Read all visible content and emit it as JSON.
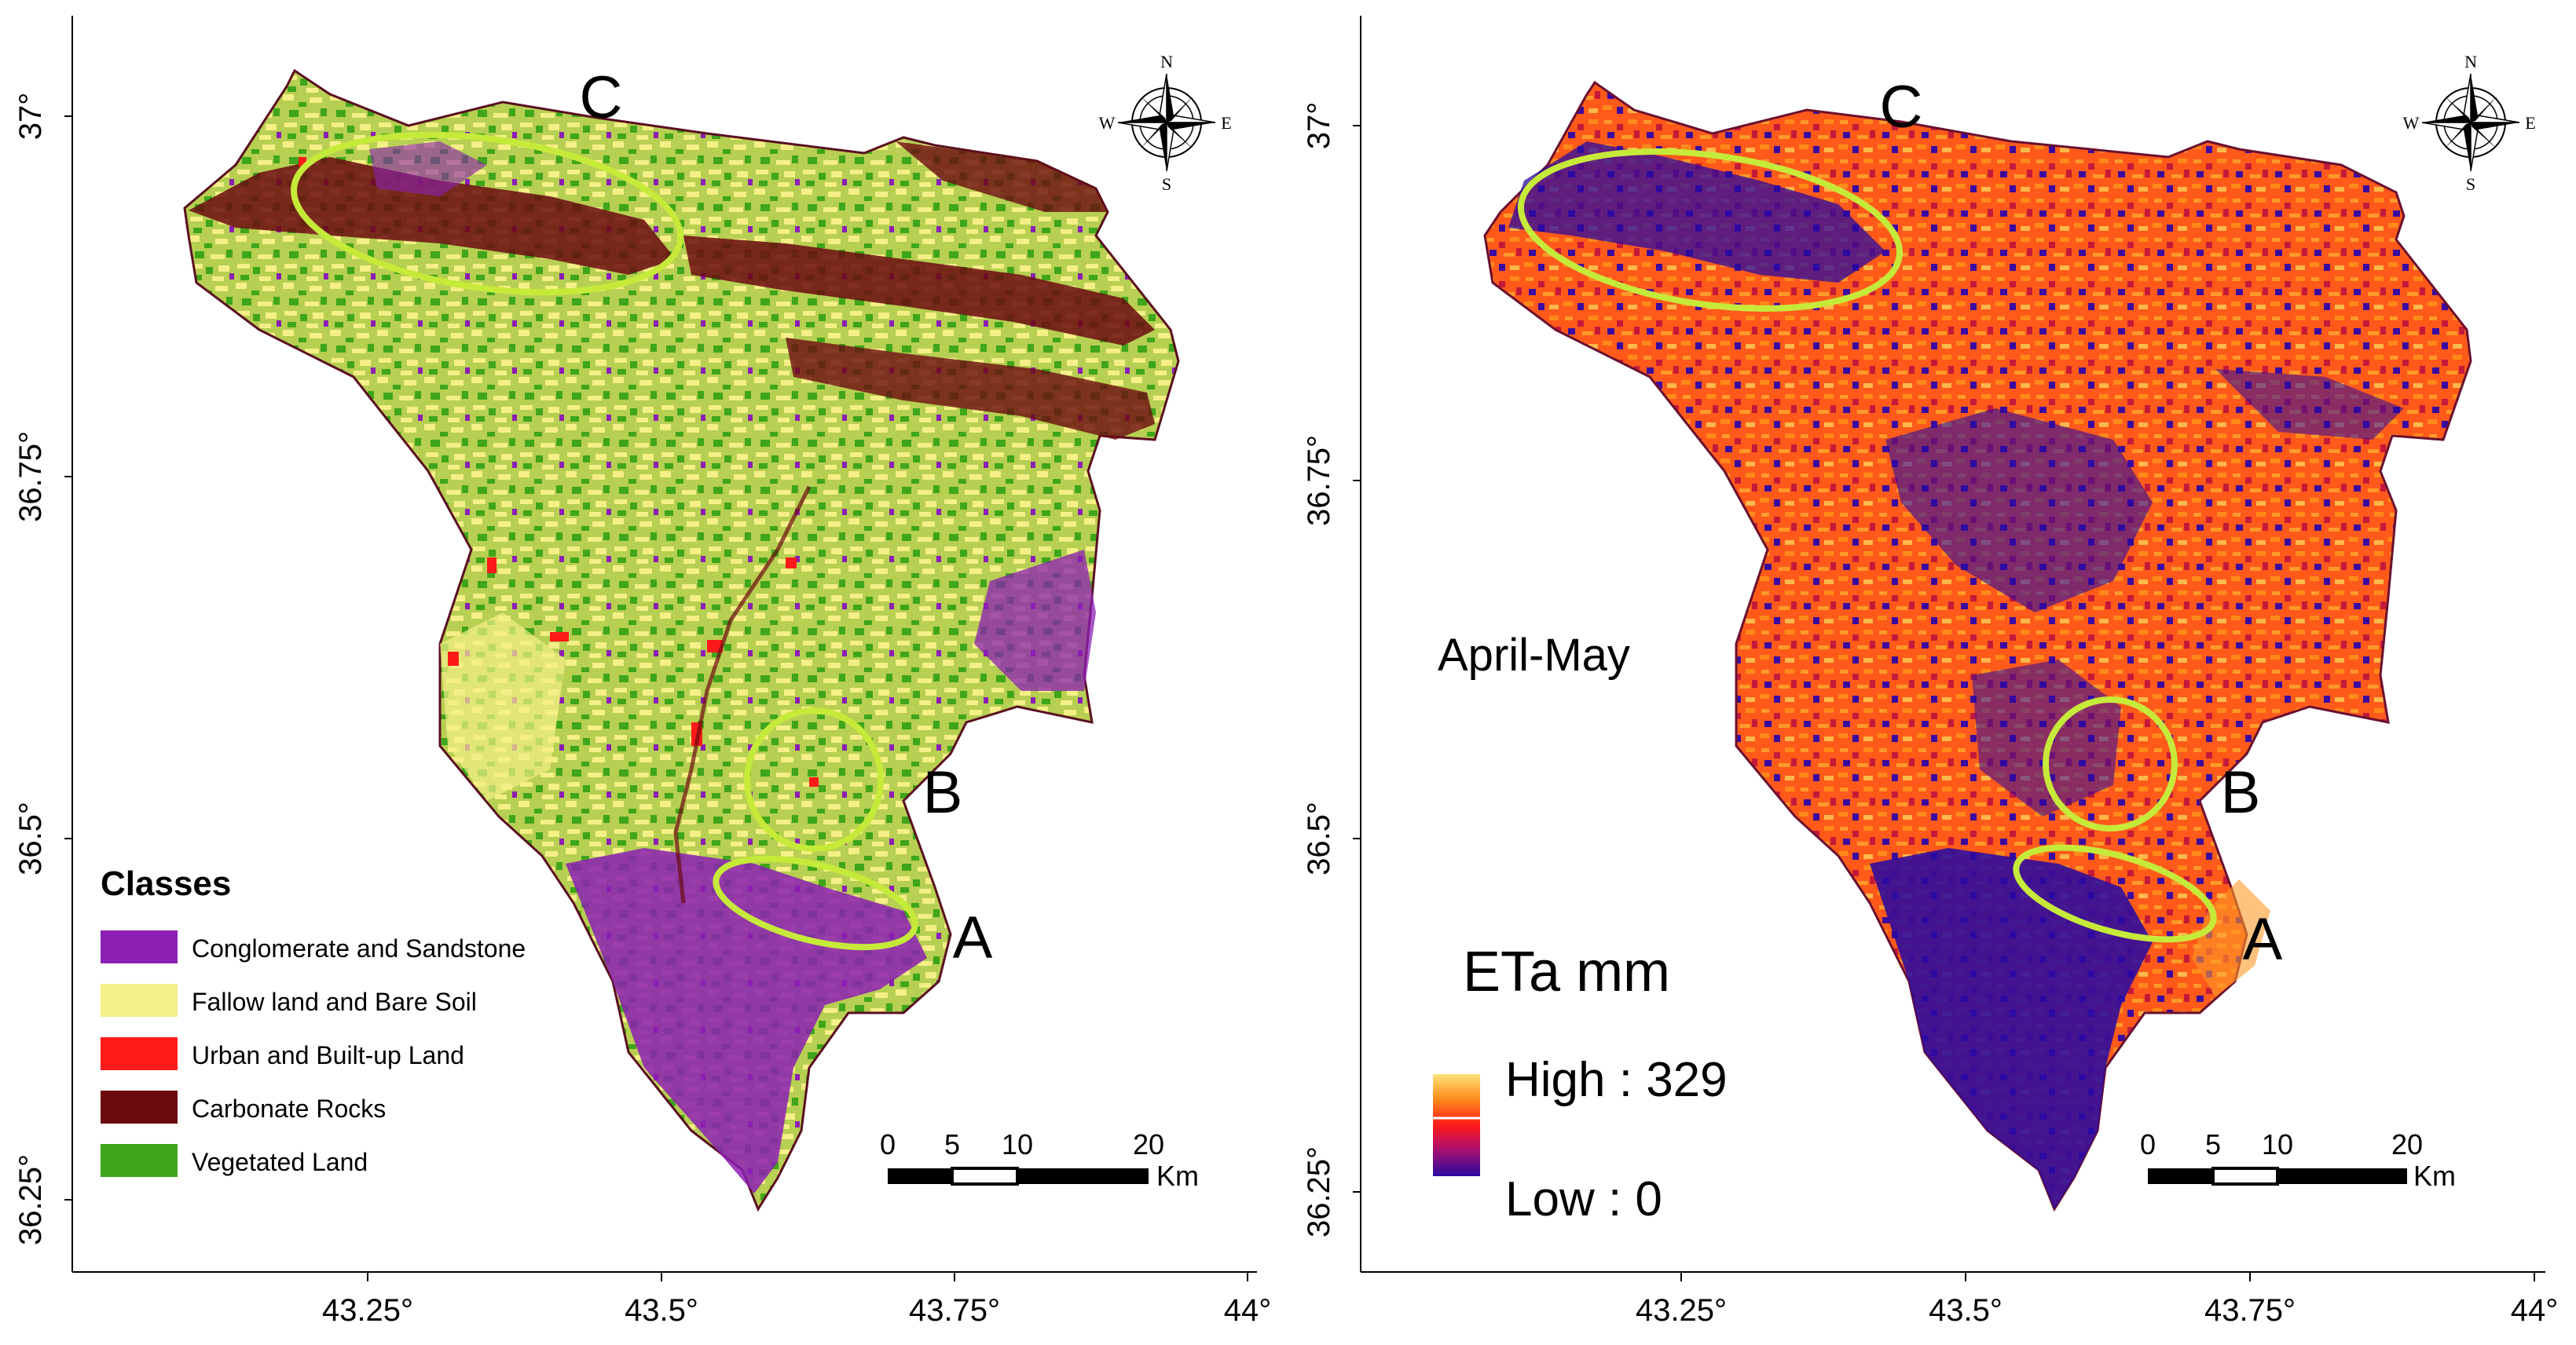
{
  "panels": [
    {
      "y_ticks": [
        "37°",
        "36.75°",
        "36.5°",
        "36.25°"
      ],
      "x_ticks": [
        "43.25°",
        "43.5°",
        "43.75°",
        "44°"
      ],
      "region_labels": [
        "C",
        "B",
        "A"
      ],
      "compass": {
        "n": "N",
        "s": "S",
        "e": "E",
        "w": "W"
      },
      "scale_bar": {
        "ticks": [
          "0",
          "5",
          "10",
          "20"
        ],
        "unit": "Km"
      },
      "legend": {
        "title": "Classes",
        "items": [
          {
            "label": "Conglomerate and Sandstone",
            "color": "#8b1fb3"
          },
          {
            "label": "Fallow land and Bare Soil",
            "color": "#f4ef86"
          },
          {
            "label": "Urban and Built-up Land",
            "color": "#ff1a1a"
          },
          {
            "label": "Carbonate Rocks",
            "color": "#6b0b10"
          },
          {
            "label": "Vegetated Land",
            "color": "#3fa51a"
          }
        ]
      },
      "highlight_color": "#c6ea3a"
    },
    {
      "y_ticks": [
        "37°",
        "36.75°",
        "36.5°",
        "36.25°"
      ],
      "x_ticks": [
        "43.25°",
        "43.5°",
        "43.75°",
        "44°"
      ],
      "region_labels": [
        "C",
        "B",
        "A"
      ],
      "compass": {
        "n": "N",
        "s": "S",
        "e": "E",
        "w": "W"
      },
      "scale_bar": {
        "ticks": [
          "0",
          "5",
          "10",
          "20"
        ],
        "unit": "Km"
      },
      "period": "April-May",
      "eta_legend": {
        "title": "ETa mm",
        "high_label": "High : 329",
        "low_label": "Low : 0",
        "high_value": 329,
        "low_value": 0,
        "ramp_colors": [
          "#ffe27a",
          "#ff8a1a",
          "#ff1a1a",
          "#b0106a",
          "#2a0aa0"
        ]
      },
      "highlight_color": "#c6ea3a"
    }
  ]
}
